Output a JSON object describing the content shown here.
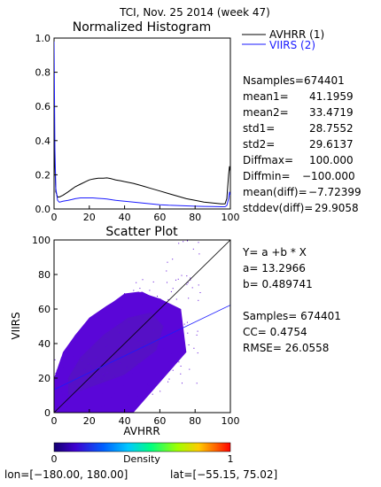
{
  "header": {
    "title": "TCI,  Nov. 25 2014 (week 47)"
  },
  "colors": {
    "avhrr_line": "#000000",
    "viirs_line": "#1a1aff",
    "axis": "#000000",
    "scatter_main": "#5a06d8",
    "scatter_dense": "#5610c6",
    "regression_line": "#1a1aff"
  },
  "histogram": {
    "title": "Normalized Histogram",
    "legend": [
      {
        "name": "AVHRR (1)",
        "color": "#000000"
      },
      {
        "name": "VIIRS (2)",
        "color": "#1a1aff"
      }
    ],
    "x_ticks": [
      "0",
      "20",
      "40",
      "60",
      "80",
      "100"
    ],
    "y_ticks": [
      "0.0",
      "0.2",
      "0.4",
      "0.6",
      "0.8",
      "1.0"
    ]
  },
  "stats": [
    {
      "label": "Nsamples=",
      "value": "674401"
    },
    {
      "label": "mean1=",
      "value": "41.1959"
    },
    {
      "label": "mean2=",
      "value": "33.4719"
    },
    {
      "label": "std1=",
      "value": "28.7552"
    },
    {
      "label": "std2=",
      "value": "29.6137"
    },
    {
      "label": "Diffmax=",
      "value": "100.000"
    },
    {
      "label": "Diffmin=",
      "value": "−100.000"
    },
    {
      "label": "mean(diff)=",
      "value": "−7.72399"
    },
    {
      "label": "stddev(diff)=",
      "value": "29.9058"
    }
  ],
  "scatter": {
    "title": "Scatter Plot",
    "xlabel": "AVHRR",
    "ylabel": "VIIRS",
    "x_ticks": [
      "0",
      "20",
      "40",
      "60",
      "80",
      "100"
    ],
    "y_ticks": [
      "0",
      "20",
      "40",
      "60",
      "80",
      "100"
    ]
  },
  "regression": {
    "equation": "Y= a +b * X",
    "a_label": "a= 13.2966",
    "b_label": "b= 0.489741",
    "samples_label": "Samples= 674401",
    "cc_label": "CC=  0.4754",
    "rmse_label": "RMSE= 26.0558"
  },
  "colorbar": {
    "label": "Density",
    "min_label": "0",
    "max_label": "1"
  },
  "footer": {
    "lon": "lon=[−180.00, 180.00]",
    "lat": "lat=[−55.15, 75.02]"
  },
  "chart_data": [
    {
      "type": "line",
      "title": "Normalized Histogram",
      "xlim": [
        0,
        100
      ],
      "ylim": [
        0,
        1.0
      ],
      "series": [
        {
          "name": "AVHRR (1)",
          "x": [
            0,
            0.5,
            1,
            2,
            3,
            5,
            8,
            10,
            12,
            15,
            18,
            20,
            22,
            25,
            28,
            30,
            32,
            35,
            38,
            40,
            45,
            50,
            55,
            60,
            65,
            70,
            75,
            80,
            85,
            90,
            95,
            97,
            98,
            99,
            99.5,
            100
          ],
          "values": [
            0.5,
            0.25,
            0.1,
            0.07,
            0.07,
            0.08,
            0.1,
            0.115,
            0.13,
            0.145,
            0.16,
            0.17,
            0.175,
            0.18,
            0.18,
            0.182,
            0.178,
            0.17,
            0.165,
            0.16,
            0.15,
            0.135,
            0.12,
            0.105,
            0.09,
            0.075,
            0.06,
            0.05,
            0.04,
            0.035,
            0.03,
            0.03,
            0.06,
            0.2,
            0.25,
            0.22
          ]
        },
        {
          "name": "VIIRS (2)",
          "x": [
            0,
            0.5,
            1,
            2,
            3,
            5,
            8,
            10,
            12,
            15,
            18,
            20,
            22,
            25,
            28,
            30,
            32,
            35,
            38,
            40,
            45,
            50,
            55,
            60,
            65,
            70,
            75,
            80,
            85,
            90,
            95,
            97,
            98,
            99,
            99.5,
            100
          ],
          "values": [
            0.98,
            0.35,
            0.12,
            0.05,
            0.04,
            0.045,
            0.05,
            0.055,
            0.06,
            0.065,
            0.065,
            0.065,
            0.065,
            0.062,
            0.06,
            0.058,
            0.055,
            0.05,
            0.047,
            0.045,
            0.04,
            0.035,
            0.03,
            0.025,
            0.022,
            0.02,
            0.018,
            0.016,
            0.015,
            0.014,
            0.013,
            0.013,
            0.02,
            0.06,
            0.1,
            0.08
          ]
        }
      ]
    },
    {
      "type": "scatter",
      "title": "Scatter Plot",
      "xlabel": "AVHRR",
      "ylabel": "VIIRS",
      "xlim": [
        0,
        100
      ],
      "ylim": [
        0,
        100
      ],
      "regression": {
        "a": 13.2966,
        "b": 0.489741
      },
      "samples": 674401,
      "cc": 0.4754,
      "rmse": 26.0558,
      "density_regions": [
        {
          "x": [
            0,
            8,
            20,
            30,
            40,
            50,
            60,
            65,
            68,
            60,
            50,
            40,
            30,
            20,
            12,
            5,
            2,
            0
          ],
          "values": [
            0,
            0,
            1,
            5,
            10,
            15,
            25,
            40,
            55,
            65,
            70,
            68,
            62,
            55,
            45,
            35,
            25,
            15
          ]
        },
        {
          "x": [
            0,
            15,
            45,
            75,
            72,
            60,
            48,
            40,
            32,
            22,
            12,
            4,
            0
          ],
          "values": [
            0,
            0,
            0,
            35,
            60,
            66,
            70,
            69,
            63,
            55,
            45,
            32,
            20
          ]
        },
        {
          "x": [
            8,
            40,
            58,
            62,
            55,
            42,
            28,
            15,
            8
          ],
          "values": [
            10,
            22,
            36,
            50,
            58,
            55,
            45,
            32,
            20
          ]
        }
      ],
      "identity_line": [
        [
          0,
          0
        ],
        [
          100,
          100
        ]
      ]
    }
  ]
}
